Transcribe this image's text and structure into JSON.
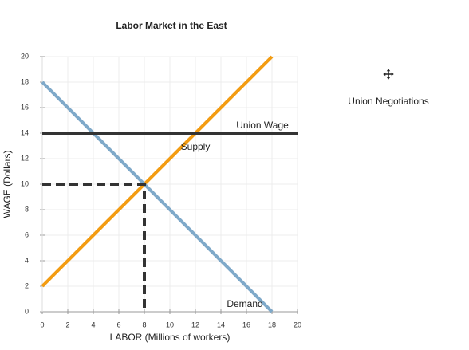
{
  "chart_data": {
    "type": "line",
    "title": "Labor Market in the East",
    "x_label": "LABOR (Millions of workers)",
    "y_label": "WAGE (Dollars)",
    "xlim": [
      0,
      20
    ],
    "ylim": [
      0,
      20
    ],
    "xticks": [
      0,
      2,
      4,
      6,
      8,
      10,
      12,
      14,
      16,
      18,
      20
    ],
    "yticks": [
      0,
      2,
      4,
      6,
      8,
      10,
      12,
      14,
      16,
      18,
      20
    ],
    "grid": true,
    "series": [
      {
        "name": "Supply",
        "color": "#f39c12",
        "x": [
          0,
          18
        ],
        "values": [
          2,
          20
        ]
      },
      {
        "name": "Demand",
        "color": "#7fa9c9",
        "x": [
          0,
          18
        ],
        "values": [
          18,
          0
        ]
      },
      {
        "name": "Union Wage",
        "color": "#333333",
        "x": [
          0,
          20
        ],
        "values": [
          14,
          14
        ]
      },
      {
        "color": "#333333",
        "dashed": true,
        "x": [
          0,
          8,
          8
        ],
        "values": [
          10,
          10,
          0
        ]
      }
    ]
  },
  "side_panel": {
    "label": "Union Negotiations"
  }
}
